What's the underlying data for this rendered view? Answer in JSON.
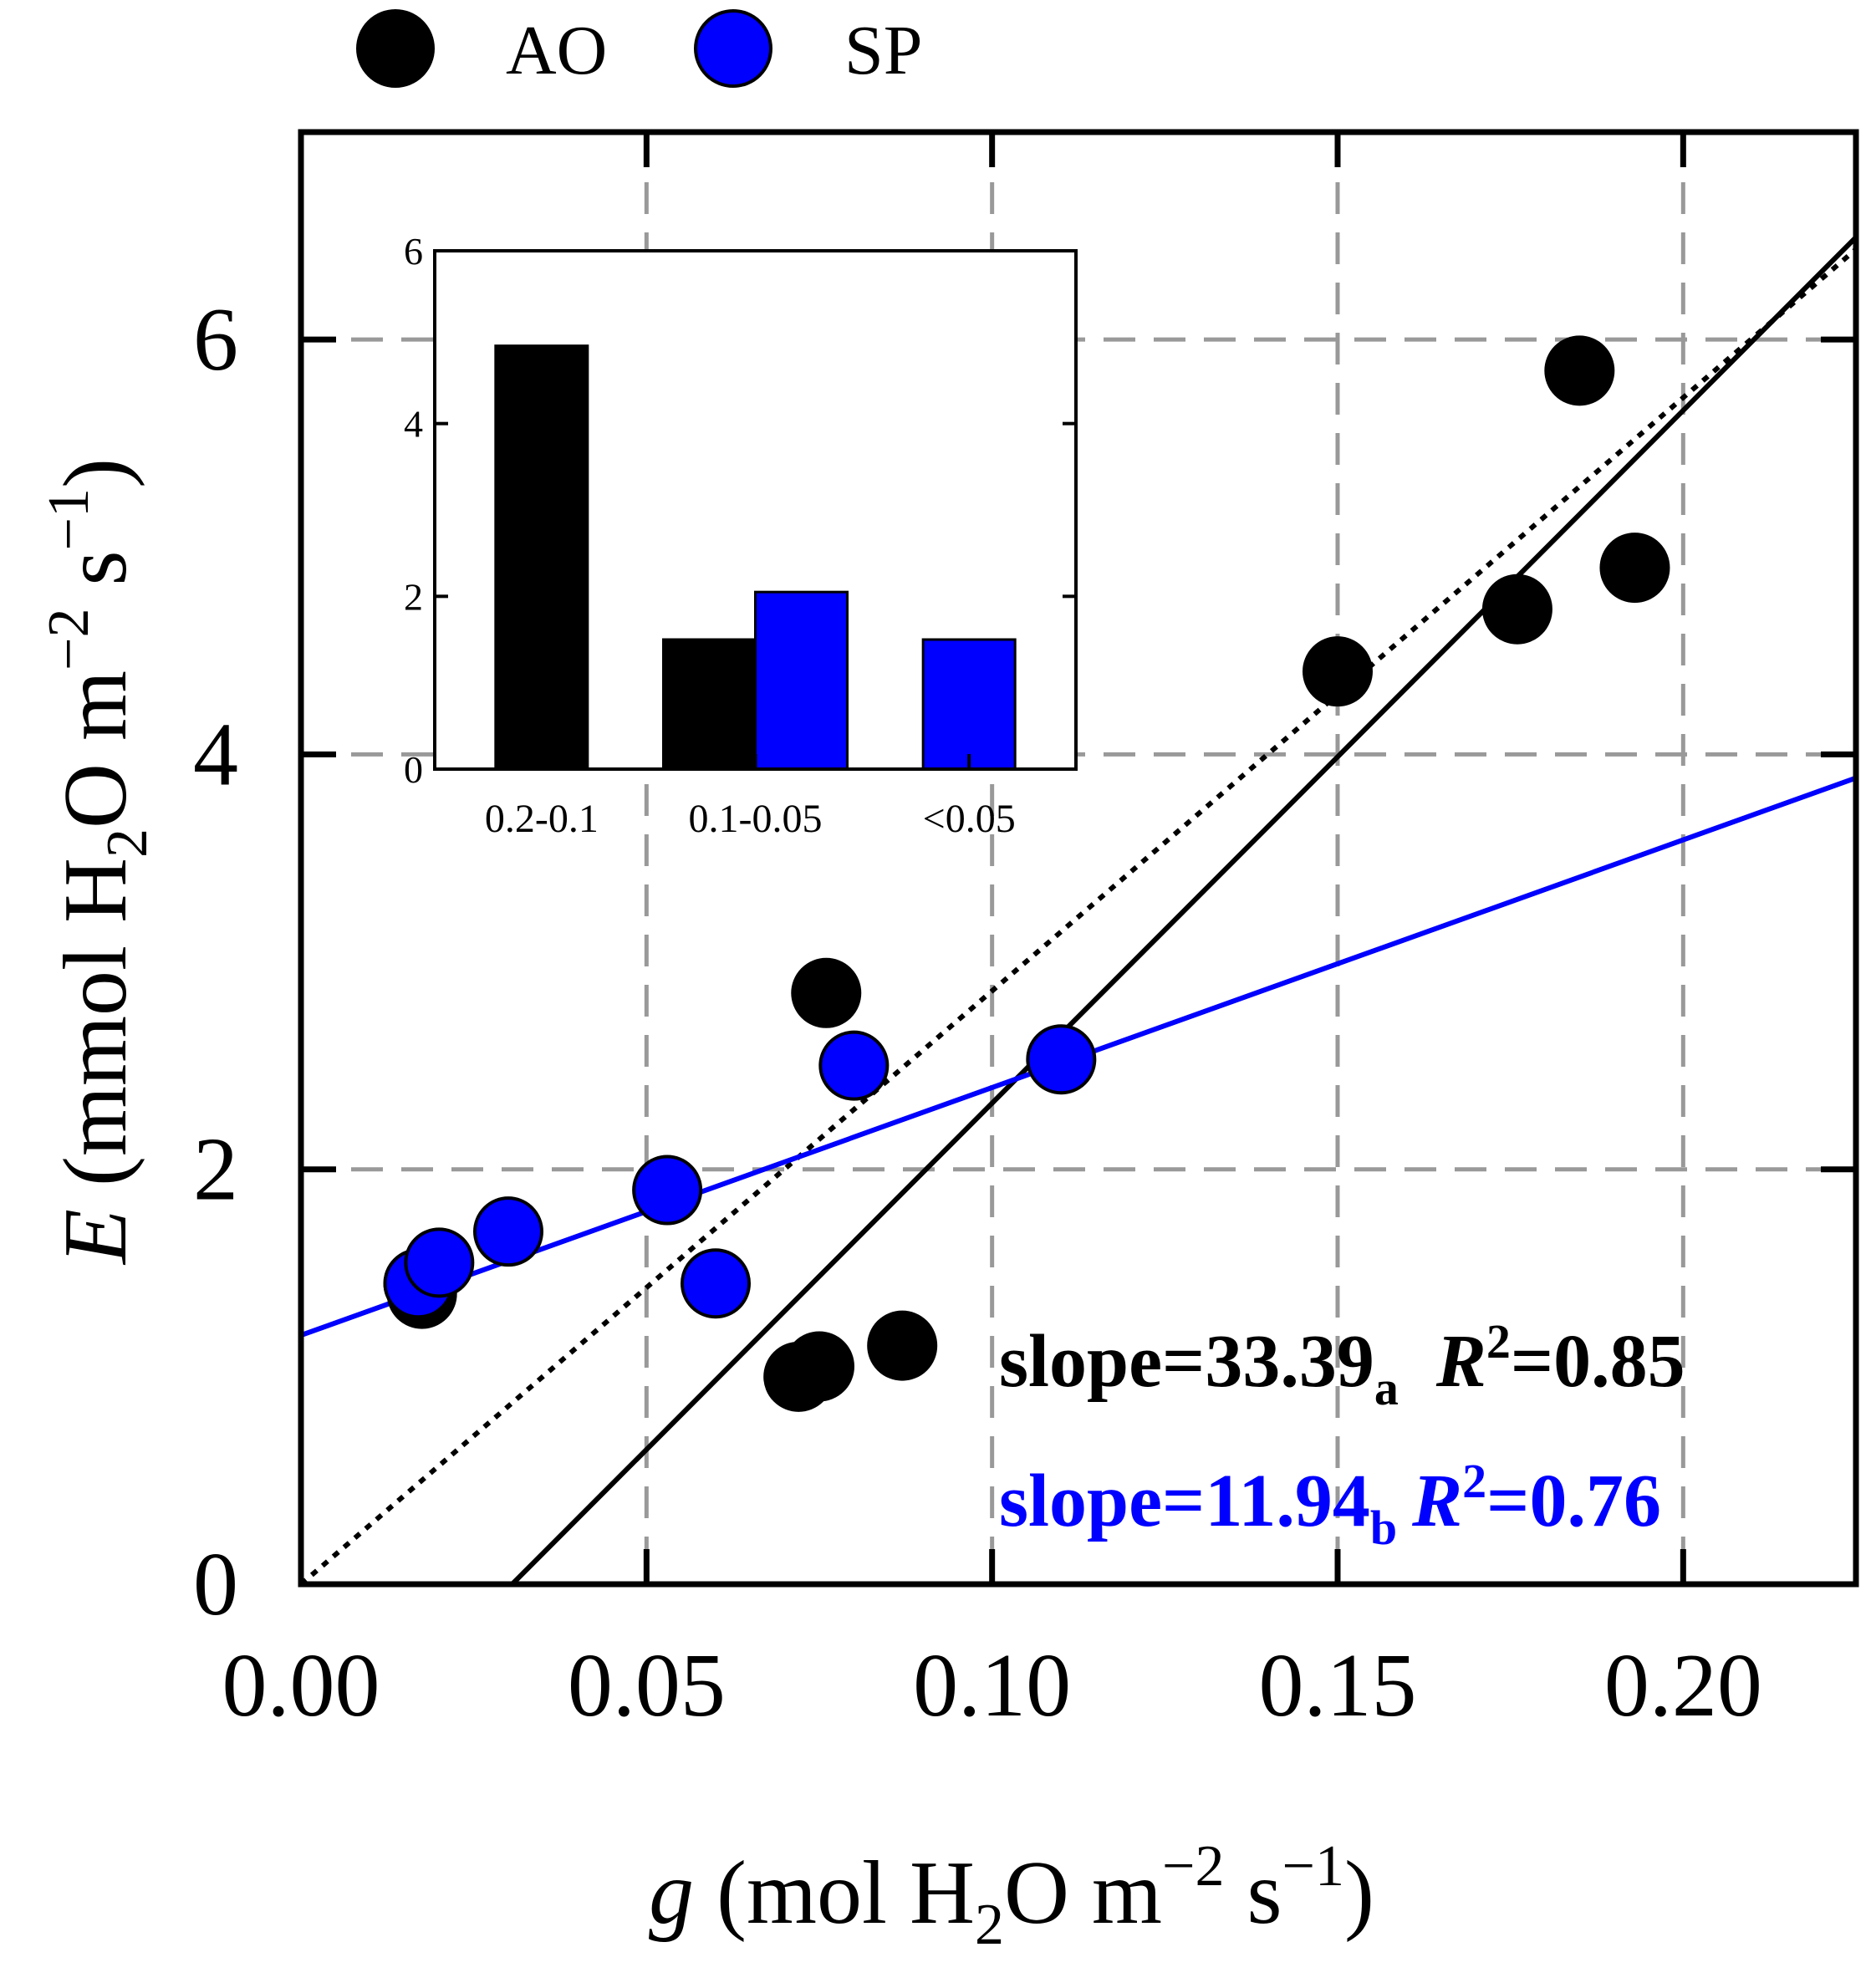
{
  "legend": {
    "items": [
      {
        "label": "AO",
        "color": "#000000"
      },
      {
        "label": "SP",
        "color": "#0000ff"
      }
    ],
    "position": "top-left"
  },
  "annotations": {
    "ao": {
      "prefix": "slope=33.39",
      "sub": "a",
      "r": "R",
      "sup": "2",
      "rest": "=0.85",
      "color": "#000000"
    },
    "sp": {
      "prefix": "slope=11.94",
      "sub": "b",
      "r": "R",
      "sup": "2",
      "rest": "=0.76",
      "color": "#0000ff"
    }
  },
  "axes": {
    "x": {
      "var": "g",
      "unit_pre": " (mol H",
      "sub2": "2",
      "unit_mid": "O m",
      "exp1": "−2",
      "unit_s": " s",
      "exp2": "−1",
      "close": ")"
    },
    "y": {
      "var": "E",
      "unit_pre": " (mmol H",
      "sub2": "2",
      "unit_mid": "O m",
      "exp1": "−2",
      "unit_s": " s",
      "exp2": "−1",
      "close": ")"
    }
  },
  "chart_data": [
    {
      "type": "scatter",
      "xlim": [
        0,
        0.225
      ],
      "ylim": [
        0,
        7
      ],
      "xticks": [
        "0.00",
        "0.05",
        "0.10",
        "0.15",
        "0.20"
      ],
      "yticks": [
        "0",
        "2",
        "4",
        "6"
      ],
      "grid": "dashed",
      "series": [
        {
          "name": "AO",
          "color": "#000000",
          "points": [
            [
              0.017,
              1.45
            ],
            [
              0.0175,
              1.4
            ],
            [
              0.072,
              1.0
            ],
            [
              0.075,
              1.05
            ],
            [
              0.087,
              1.15
            ],
            [
              0.076,
              2.85
            ],
            [
              0.15,
              4.4
            ],
            [
              0.176,
              4.7
            ],
            [
              0.185,
              5.85
            ],
            [
              0.193,
              4.9
            ]
          ],
          "fit": {
            "slope": 33.39,
            "intercept": -1.02,
            "style": "solid"
          }
        },
        {
          "name": "SP",
          "color": "#0000ff",
          "points": [
            [
              0.017,
              1.45
            ],
            [
              0.02,
              1.55
            ],
            [
              0.03,
              1.7
            ],
            [
              0.053,
              1.9
            ],
            [
              0.06,
              1.45
            ],
            [
              0.08,
              2.5
            ],
            [
              0.11,
              2.53
            ]
          ],
          "fit": {
            "slope": 11.94,
            "intercept": 1.2,
            "style": "solid"
          }
        }
      ],
      "reference_line": {
        "name": "1:1",
        "slope": 28.6,
        "intercept": 0,
        "style": "dotted",
        "color": "#000000"
      }
    },
    {
      "type": "bar",
      "categories": [
        "0.2-0.1",
        "0.1-0.05",
        "<0.05"
      ],
      "series": [
        {
          "name": "AO",
          "color": "#000000",
          "values": [
            4.9,
            1.5,
            null
          ]
        },
        {
          "name": "SP",
          "color": "#0000ff",
          "values": [
            null,
            2.05,
            1.5
          ]
        }
      ],
      "ylim": [
        0,
        6
      ],
      "yticks": [
        "0",
        "2",
        "4",
        "6"
      ],
      "position": "inset top-left"
    }
  ]
}
